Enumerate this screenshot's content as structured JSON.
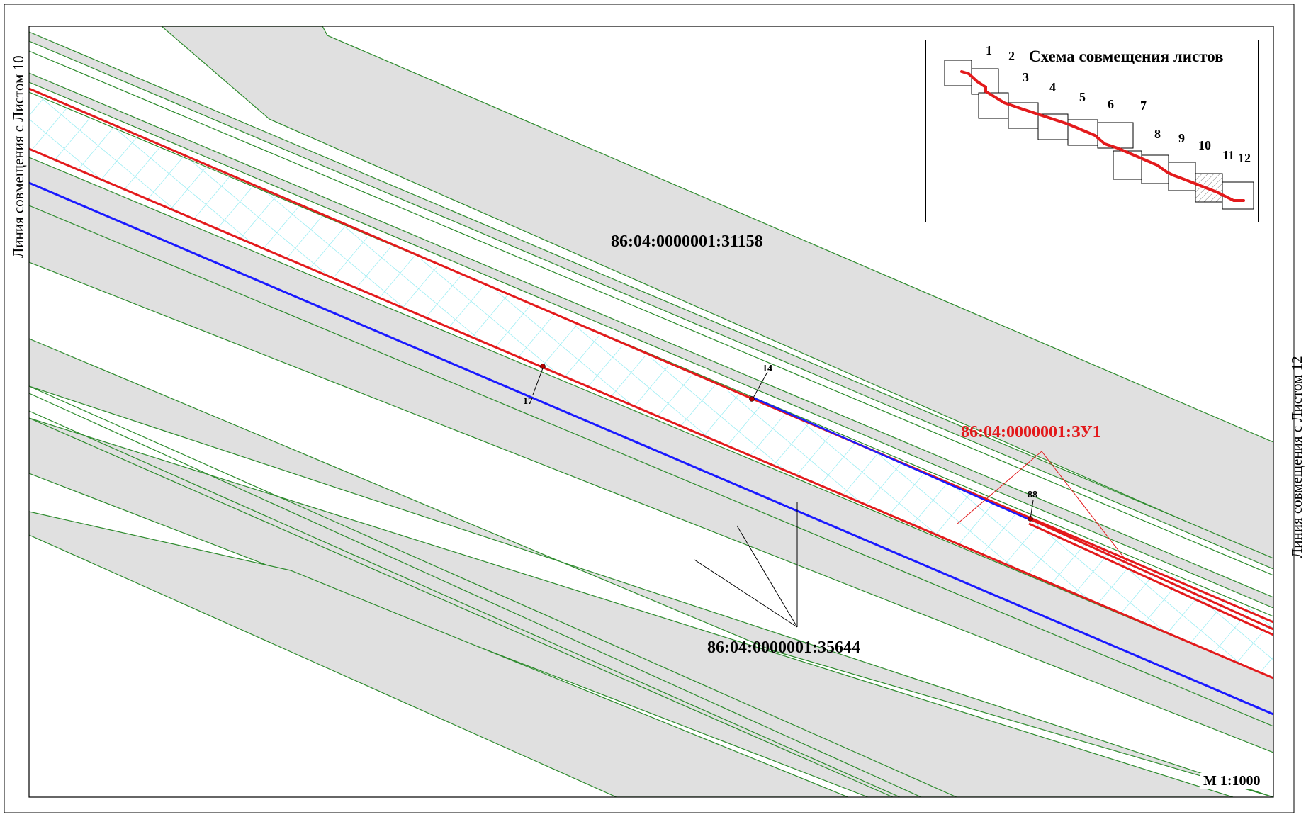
{
  "side_labels": {
    "left": "Линия совмещения с Листом 10",
    "right": "Линия совмещения с Листом 12"
  },
  "parcels": {
    "north": "86:04:0000001:31158",
    "south": "86:04:0000001:35644",
    "new": "86:04:0000001:ЗУ1"
  },
  "points": [
    "14",
    "17",
    "88"
  ],
  "scale": "М 1:1000",
  "inset": {
    "title": "Схема совмещения листов",
    "sheets": [
      "1",
      "2",
      "3",
      "4",
      "5",
      "6",
      "7",
      "8",
      "9",
      "10",
      "11",
      "12"
    ],
    "current_sheet": "11"
  },
  "colors": {
    "boundary_new": "#e31a1c",
    "boundary_blue": "#1a1aff",
    "parcel_fill": "#e0e0e0",
    "parcel_edge": "#2e8b2e",
    "hatch": "#80e8f0"
  }
}
